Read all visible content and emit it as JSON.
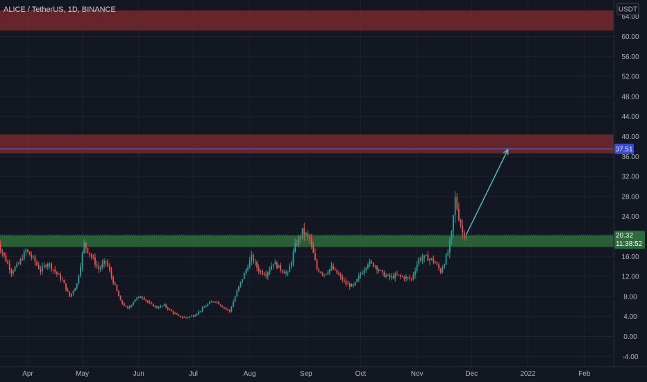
{
  "header": {
    "symbol_title": "ALICE / TetherUS, 1D, BINANCE",
    "currency": "USDT"
  },
  "price_labels": {
    "target_price": "37.51",
    "last_price": "20.32",
    "countdown": "11:38:52"
  },
  "colors": {
    "background": "#131722",
    "grid": "#1f2330",
    "up": "#26a69a",
    "down": "#ef5350",
    "resistance_zone": "#7a2a2e",
    "support_zone": "#2e6b3a",
    "target_line": "#5b6cff",
    "arrow": "#4fc7c7"
  },
  "chart_data": {
    "type": "candlestick",
    "title": "ALICE / TetherUS, 1D, BINANCE",
    "ylim": [
      -5.5,
      66
    ],
    "y_ticks": [
      -4.0,
      0.0,
      4.0,
      8.0,
      12.0,
      16.0,
      20.0,
      24.0,
      28.0,
      32.0,
      36.0,
      40.0,
      44.0,
      48.0,
      52.0,
      56.0,
      60.0,
      64.0
    ],
    "x_ticks": [
      {
        "label": "Apr",
        "x": "2021-04-01"
      },
      {
        "label": "May",
        "x": "2021-05-01"
      },
      {
        "label": "Jun",
        "x": "2021-06-01"
      },
      {
        "label": "Jul",
        "x": "2021-07-01"
      },
      {
        "label": "Aug",
        "x": "2021-08-01"
      },
      {
        "label": "Sep",
        "x": "2021-09-01"
      },
      {
        "label": "Oct",
        "x": "2021-10-01"
      },
      {
        "label": "Nov",
        "x": "2021-11-01"
      },
      {
        "label": "Dec",
        "x": "2021-12-01"
      },
      {
        "label": "2022",
        "x": "2022-01-01"
      },
      {
        "label": "Feb",
        "x": "2022-02-01"
      }
    ],
    "grid": true,
    "zones": [
      {
        "kind": "resistance",
        "from": 61.2,
        "to": 65.2
      },
      {
        "kind": "resistance",
        "from": 36.6,
        "to": 40.4
      },
      {
        "kind": "support",
        "from": 17.9,
        "to": 20.2
      }
    ],
    "horizontal_lines": [
      {
        "value": 37.51
      },
      {
        "value": 20.32
      }
    ],
    "projection_arrow": {
      "from": [
        "2021-11-28",
        20.3
      ],
      "to": [
        "2021-12-21",
        37.4
      ]
    },
    "price_path": [
      [
        "2021-03-15",
        19.5
      ],
      [
        "2021-03-19",
        16.0
      ],
      [
        "2021-03-23",
        13.0
      ],
      [
        "2021-03-27",
        14.5
      ],
      [
        "2021-03-31",
        17.2
      ],
      [
        "2021-04-04",
        15.5
      ],
      [
        "2021-04-08",
        13.2
      ],
      [
        "2021-04-12",
        14.8
      ],
      [
        "2021-04-16",
        13.0
      ],
      [
        "2021-04-20",
        11.2
      ],
      [
        "2021-04-24",
        8.0
      ],
      [
        "2021-04-28",
        10.5
      ],
      [
        "2021-05-02",
        18.5
      ],
      [
        "2021-05-06",
        16.0
      ],
      [
        "2021-05-10",
        13.5
      ],
      [
        "2021-05-14",
        15.0
      ],
      [
        "2021-05-18",
        11.0
      ],
      [
        "2021-05-22",
        7.0
      ],
      [
        "2021-05-26",
        5.5
      ],
      [
        "2021-05-30",
        7.5
      ],
      [
        "2021-06-03",
        8.0
      ],
      [
        "2021-06-07",
        6.5
      ],
      [
        "2021-06-11",
        5.8
      ],
      [
        "2021-06-15",
        6.2
      ],
      [
        "2021-06-19",
        5.0
      ],
      [
        "2021-06-23",
        4.0
      ],
      [
        "2021-06-27",
        3.8
      ],
      [
        "2021-07-01",
        4.2
      ],
      [
        "2021-07-05",
        5.2
      ],
      [
        "2021-07-09",
        6.5
      ],
      [
        "2021-07-13",
        7.2
      ],
      [
        "2021-07-17",
        6.0
      ],
      [
        "2021-07-21",
        5.0
      ],
      [
        "2021-07-25",
        9.0
      ],
      [
        "2021-07-29",
        12.5
      ],
      [
        "2021-08-02",
        15.8
      ],
      [
        "2021-08-06",
        13.2
      ],
      [
        "2021-08-10",
        12.5
      ],
      [
        "2021-08-14",
        14.8
      ],
      [
        "2021-08-18",
        13.5
      ],
      [
        "2021-08-22",
        12.5
      ],
      [
        "2021-08-26",
        18.0
      ],
      [
        "2021-08-30",
        21.0
      ],
      [
        "2021-09-03",
        19.5
      ],
      [
        "2021-09-07",
        13.5
      ],
      [
        "2021-09-11",
        12.5
      ],
      [
        "2021-09-15",
        13.8
      ],
      [
        "2021-09-19",
        12.2
      ],
      [
        "2021-09-23",
        10.5
      ],
      [
        "2021-09-27",
        10.0
      ],
      [
        "2021-10-01",
        12.5
      ],
      [
        "2021-10-05",
        14.8
      ],
      [
        "2021-10-09",
        14.2
      ],
      [
        "2021-10-13",
        12.5
      ],
      [
        "2021-10-17",
        11.8
      ],
      [
        "2021-10-21",
        12.2
      ],
      [
        "2021-10-25",
        11.8
      ],
      [
        "2021-10-29",
        11.5
      ],
      [
        "2021-11-02",
        15.5
      ],
      [
        "2021-11-06",
        15.8
      ],
      [
        "2021-11-10",
        15.2
      ],
      [
        "2021-11-14",
        13.0
      ],
      [
        "2021-11-18",
        16.8
      ],
      [
        "2021-11-20",
        20.5
      ],
      [
        "2021-11-22",
        27.5
      ],
      [
        "2021-11-24",
        24.0
      ],
      [
        "2021-11-26",
        20.8
      ],
      [
        "2021-11-28",
        20.32
      ]
    ]
  }
}
